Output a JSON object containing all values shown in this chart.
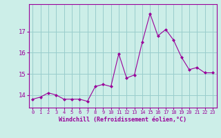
{
  "x": [
    0,
    1,
    2,
    3,
    4,
    5,
    6,
    7,
    8,
    9,
    10,
    11,
    12,
    13,
    14,
    15,
    16,
    17,
    18,
    19,
    20,
    21,
    22,
    23
  ],
  "y": [
    13.8,
    13.9,
    14.1,
    14.0,
    13.8,
    13.8,
    13.8,
    13.7,
    14.4,
    14.5,
    14.4,
    15.95,
    14.8,
    14.95,
    16.5,
    17.85,
    16.8,
    17.1,
    16.6,
    15.8,
    15.2,
    15.3,
    15.05,
    15.05
  ],
  "line_color": "#990099",
  "marker": "D",
  "marker_size": 2.0,
  "bg_color": "#cceee8",
  "grid_color": "#99cccc",
  "xlabel": "Windchill (Refroidissement éolien,°C)",
  "xlabel_color": "#990099",
  "tick_color": "#990099",
  "yticks": [
    14,
    15,
    16,
    17
  ],
  "ylim": [
    13.4,
    18.3
  ],
  "xlim": [
    -0.5,
    23.5
  ],
  "xtick_fontsize": 5.0,
  "ytick_fontsize": 6.5,
  "xlabel_fontsize": 6.0
}
